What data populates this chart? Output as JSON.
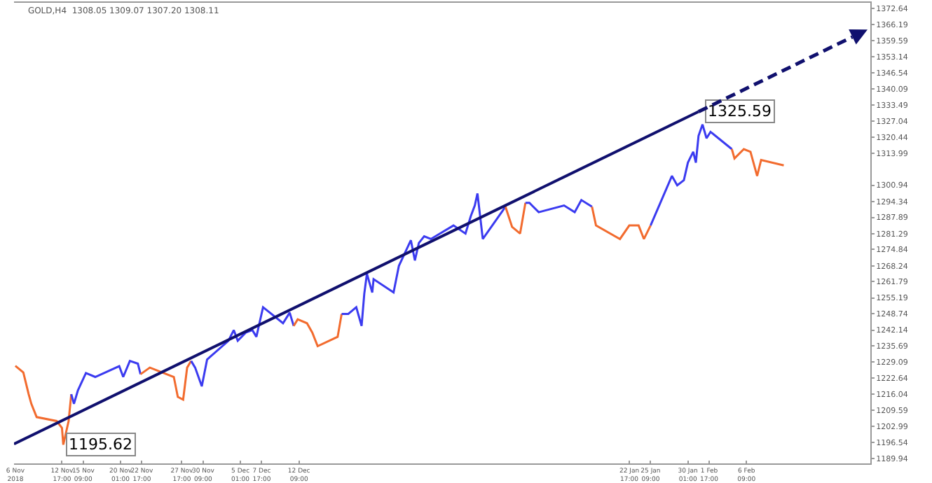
{
  "chart_data": {
    "type": "line",
    "title": "GOLD,H4  1308.05 1309.07 1307.20 1308.11",
    "xlim": [
      "2018-11-06T17:00",
      "2019-02-21T21:00"
    ],
    "xticks": [
      {
        "value": "2018-11-06T21:00",
        "label": "6 Nov 2018"
      },
      {
        "value": "2018-11-12T17:00",
        "label": "12 Nov 17:00"
      },
      {
        "value": "2018-11-15T09:00",
        "label": "15 Nov 09:00"
      },
      {
        "value": "2018-11-20T01:00",
        "label": "20 Nov 01:00"
      },
      {
        "value": "2018-11-22T17:00",
        "label": "22 Nov 17:00"
      },
      {
        "value": "2018-11-27T17:00",
        "label": "27 Nov 17:00"
      },
      {
        "value": "2018-11-30T09:00",
        "label": "30 Nov 09:00"
      },
      {
        "value": "2018-12-05T01:00",
        "label": "5 Dec 01:00"
      },
      {
        "value": "2018-12-07T17:00",
        "label": "7 Dec 17:00"
      },
      {
        "value": "2018-12-12T09:00",
        "label": "12 Dec 09:00"
      },
      {
        "value": "2019-01-22T17:00",
        "label": "22 Jan 17:00"
      },
      {
        "value": "2019-01-25T09:00",
        "label": "25 Jan 09:00"
      },
      {
        "value": "2019-01-30T01:00",
        "label": "30 Jan 01:00"
      },
      {
        "value": "2019-02-01T17:00",
        "label": "1 Feb 17:00"
      },
      {
        "value": "2019-02-06T09:00",
        "label": "6 Feb 09:00"
      }
    ],
    "ylim": [
      1188,
      1375
    ],
    "yticks": [
      1189.94,
      1196.54,
      1202.99,
      1209.59,
      1216.04,
      1222.64,
      1229.09,
      1235.69,
      1242.14,
      1248.74,
      1255.19,
      1261.79,
      1268.24,
      1274.84,
      1281.29,
      1287.89,
      1294.34,
      1300.94,
      1313.99,
      1320.44,
      1327.04,
      1333.49,
      1340.09,
      1346.54,
      1353.14,
      1359.59,
      1366.19,
      1372.64
    ],
    "grid": false,
    "marker": "none",
    "series": [
      {
        "color": "#f26b2e",
        "x": [
          "2018-11-06T21:00",
          "2018-11-07T21:00",
          "2018-11-08T13:00",
          "2018-11-08T21:00",
          "2018-11-09T13:00",
          "2018-11-12T01:00",
          "2018-11-12T17:00",
          "2018-11-12T21:00",
          "2018-11-13T13:00",
          "2018-11-13T21:00"
        ],
        "values": [
          1227.6,
          1224.9,
          1216.1,
          1212.2,
          1206.8,
          1205.2,
          1202.4,
          1195.6,
          1205.2,
          1216.1
        ]
      },
      {
        "color": "#3b3bf0",
        "x": [
          "2018-11-13T21:00",
          "2018-11-14T05:00",
          "2018-11-14T17:00",
          "2018-11-15T17:00",
          "2018-11-16T21:00",
          "2018-11-19T21:00",
          "2018-11-20T09:00",
          "2018-11-21T05:00",
          "2018-11-22T05:00",
          "2018-11-22T13:00"
        ],
        "values": [
          1216.1,
          1212.2,
          1217.7,
          1224.7,
          1223.1,
          1227.5,
          1223.1,
          1229.6,
          1228.5,
          1224.2
        ]
      },
      {
        "color": "#f26b2e",
        "x": [
          "2018-11-22T13:00",
          "2018-11-23T17:00",
          "2018-11-26T17:00",
          "2018-11-27T05:00",
          "2018-11-27T21:00",
          "2018-11-28T09:00",
          "2018-11-28T21:00"
        ],
        "values": [
          1224.2,
          1226.9,
          1223.1,
          1215.0,
          1213.9,
          1226.9,
          1229.6
        ]
      },
      {
        "color": "#3b3bf0",
        "x": [
          "2018-11-28T21:00",
          "2018-11-29T09:00",
          "2018-11-30T05:00",
          "2018-11-30T21:00",
          "2018-12-03T13:00",
          "2018-12-04T05:00",
          "2018-12-04T17:00",
          "2018-12-05T17:00",
          "2018-12-06T13:00",
          "2018-12-07T01:00",
          "2018-12-07T21:00",
          "2018-12-10T09:00",
          "2018-12-11T05:00",
          "2018-12-11T17:00"
        ],
        "values": [
          1229.6,
          1226.9,
          1219.3,
          1230.2,
          1237.8,
          1242.1,
          1237.8,
          1241.1,
          1242.1,
          1239.4,
          1251.4,
          1244.9,
          1249.2,
          1243.8
        ]
      },
      {
        "color": "#f26b2e",
        "x": [
          "2018-12-11T17:00",
          "2018-12-12T05:00",
          "2018-12-13T09:00",
          "2018-12-14T01:00",
          "2018-12-14T17:00",
          "2018-12-17T05:00",
          "2018-12-17T17:00"
        ],
        "values": [
          1243.8,
          1246.5,
          1244.9,
          1241.1,
          1235.6,
          1239.4,
          1248.7
        ]
      },
      {
        "color": "#3b3bf0",
        "x": [
          "2018-12-17T17:00",
          "2018-12-18T13:00",
          "2018-12-19T13:00",
          "2018-12-20T05:00",
          "2018-12-20T13:00",
          "2018-12-20T21:00",
          "2018-12-21T13:00",
          "2018-12-21T17:00",
          "2018-12-24T05:00",
          "2018-12-24T21:00",
          "2018-12-26T09:00",
          "2018-12-26T21:00",
          "2018-12-27T09:00",
          "2018-12-28T01:00",
          "2018-12-28T21:00",
          "2018-12-31T17:00",
          "2019-01-02T05:00",
          "2019-01-02T21:00",
          "2019-01-03T09:00",
          "2019-01-03T17:00",
          "2019-01-04T09:00",
          "2019-01-07T05:00"
        ],
        "values": [
          1248.7,
          1248.7,
          1251.4,
          1243.8,
          1256.8,
          1265.0,
          1257.4,
          1262.8,
          1257.4,
          1268.2,
          1278.6,
          1270.4,
          1277.5,
          1280.2,
          1279.1,
          1284.6,
          1281.3,
          1288.4,
          1292.7,
          1297.6,
          1279.1,
          1292.2
        ]
      },
      {
        "color": "#f26b2e",
        "x": [
          "2019-01-07T05:00",
          "2019-01-08T01:00",
          "2019-01-09T01:00",
          "2019-01-09T17:00"
        ],
        "values": [
          1292.2,
          1284.0,
          1281.3,
          1293.8
        ]
      },
      {
        "color": "#3b3bf0",
        "x": [
          "2019-01-09T17:00",
          "2019-01-10T05:00",
          "2019-01-11T09:00",
          "2019-01-14T13:00",
          "2019-01-15T21:00",
          "2019-01-16T17:00",
          "2019-01-18T01:00"
        ],
        "values": [
          1293.8,
          1293.8,
          1290.0,
          1292.7,
          1290.0,
          1294.9,
          1292.2
        ]
      },
      {
        "color": "#f26b2e",
        "x": [
          "2019-01-18T01:00",
          "2019-01-18T13:00",
          "2019-01-21T13:00",
          "2019-01-22T17:00",
          "2019-01-23T21:00",
          "2019-01-24T13:00",
          "2019-01-25T09:00"
        ],
        "values": [
          1292.2,
          1284.6,
          1279.1,
          1284.6,
          1284.6,
          1279.1,
          1284.6
        ]
      },
      {
        "color": "#3b3bf0",
        "x": [
          "2019-01-25T09:00",
          "2019-01-28T01:00",
          "2019-01-28T17:00",
          "2019-01-29T13:00",
          "2019-01-30T01:00",
          "2019-01-30T17:00",
          "2019-01-31T01:00",
          "2019-01-31T09:00",
          "2019-01-31T21:00",
          "2019-02-01T09:00",
          "2019-02-01T21:00",
          "2019-02-04T13:00"
        ],
        "values": [
          1284.6,
          1304.7,
          1300.9,
          1303.0,
          1310.1,
          1314.5,
          1310.1,
          1321.0,
          1325.6,
          1320.0,
          1322.6,
          1315.6
        ]
      },
      {
        "color": "#f26b2e",
        "x": [
          "2019-02-04T13:00",
          "2019-02-04T21:00",
          "2019-02-06T01:00",
          "2019-02-06T21:00",
          "2019-02-07T17:00",
          "2019-02-08T05:00",
          "2019-02-11T01:00"
        ],
        "values": [
          1315.6,
          1311.8,
          1315.6,
          1314.5,
          1304.7,
          1311.2,
          1309.0
        ]
      },
      {
        "color": "#10106e",
        "x": [
          "2018-11-06T17:00",
          "2019-01-31T09:00"
        ],
        "values": [
          1195.9,
          1330.8
        ],
        "line_style": "solid"
      }
    ],
    "annotations": [
      {
        "text": "1195.62",
        "x": "2018-11-12T21:00",
        "y": 1195.62
      },
      {
        "text": "1325.59",
        "x": "2019-01-31T21:00",
        "y": 1325.59
      }
    ]
  }
}
